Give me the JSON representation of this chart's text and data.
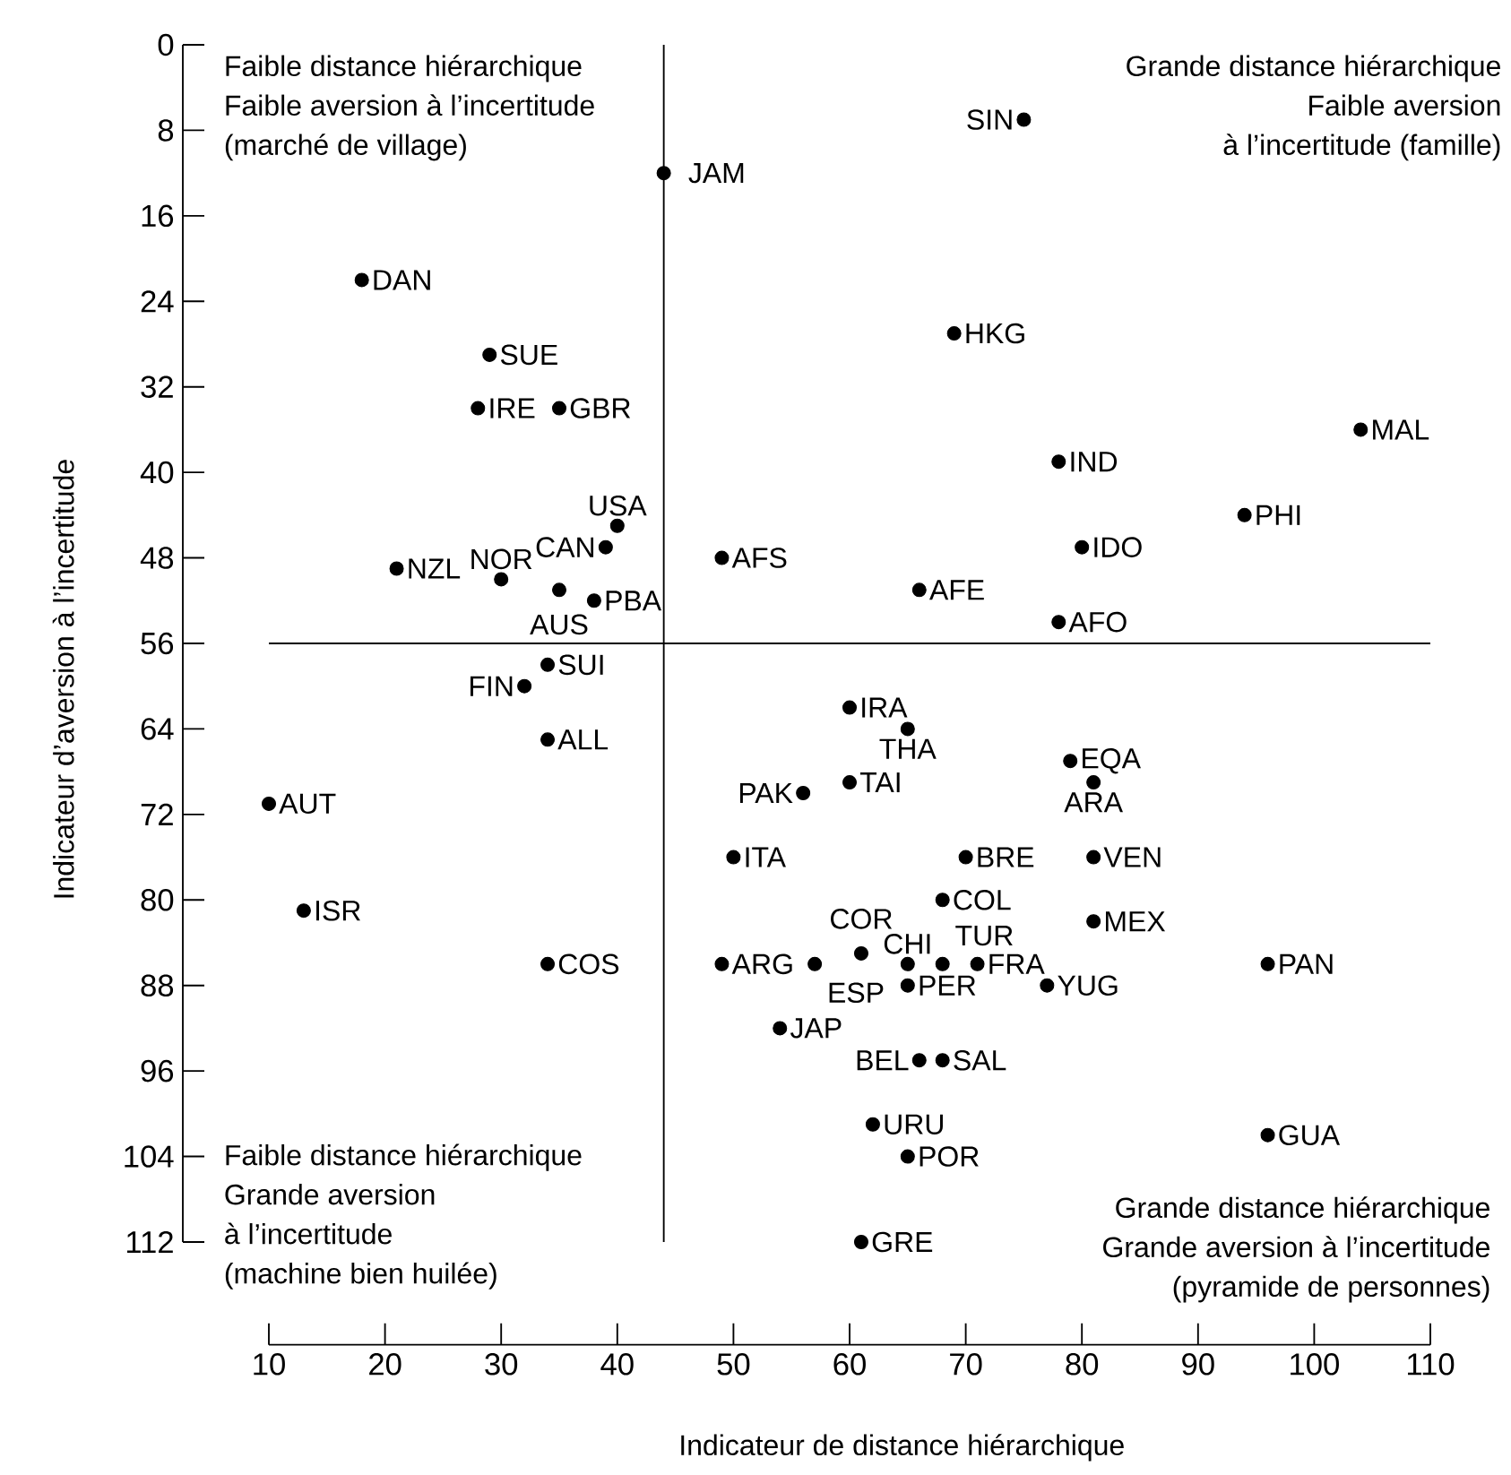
{
  "chart_data": {
    "type": "scatter",
    "xlabel": "Indicateur de distance hiérarchique",
    "ylabel": "Indicateur d’aversion à l’incertitude",
    "x": [
      44,
      18,
      29,
      28,
      35,
      21,
      30,
      35,
      39,
      40,
      49,
      38,
      34,
      32,
      34,
      10,
      13,
      34,
      50,
      49,
      57,
      54,
      56,
      75,
      69,
      104,
      78,
      94,
      80,
      66,
      78,
      60,
      65,
      60,
      79,
      81,
      70,
      81,
      68,
      81,
      65,
      65,
      68,
      71,
      61,
      77,
      96,
      66,
      68,
      62,
      65,
      96,
      61
    ],
    "values": [
      12,
      22,
      29,
      34,
      34,
      49,
      50,
      51,
      47,
      45,
      48,
      52,
      58,
      60,
      65,
      71,
      81,
      86,
      76,
      86,
      86,
      92,
      70,
      7,
      27,
      36,
      39,
      44,
      47,
      51,
      54,
      62,
      64,
      69,
      67,
      69,
      76,
      76,
      80,
      82,
      86,
      88,
      86,
      86,
      85,
      88,
      86,
      95,
      95,
      101,
      104,
      102,
      112
    ],
    "color": "#000000",
    "marker": "circle",
    "xlim": [
      10,
      110
    ],
    "ylim": [
      112,
      0
    ],
    "xticks": [
      10,
      20,
      30,
      40,
      50,
      60,
      70,
      80,
      90,
      100,
      110
    ],
    "yticks": [
      0,
      8,
      16,
      24,
      32,
      40,
      48,
      56,
      64,
      72,
      80,
      88,
      96,
      104,
      112
    ],
    "ref_lines": [
      {
        "axis": "x",
        "value": 44
      },
      {
        "axis": "y",
        "value": 56
      }
    ],
    "annotations": [
      "Faible distance hiérarchique",
      "Faible aversion à l’incertitude",
      "(marché de village)",
      "Grande distance hiérarchique",
      "Faible aversion",
      "à l’incertitude (famille)",
      "Faible distance hiérarchique",
      "Grande aversion",
      "à l’incertitude",
      "(machine bien huilée)",
      "Grande distance hiérarchique",
      "Grande aversion à l’incertitude",
      "(pyramide de personnes)",
      {
        "text": "JAM",
        "x": 44,
        "y": 12
      },
      {
        "text": "DAN",
        "x": 18,
        "y": 22
      },
      {
        "text": "SUE",
        "x": 29,
        "y": 29
      },
      {
        "text": "IRE",
        "x": 28,
        "y": 34
      },
      {
        "text": "GBR",
        "x": 35,
        "y": 34
      },
      {
        "text": "NZL",
        "x": 21,
        "y": 49
      },
      {
        "text": "NOR",
        "x": 30,
        "y": 50
      },
      {
        "text": "AUS",
        "x": 35,
        "y": 51
      },
      {
        "text": "CAN",
        "x": 39,
        "y": 47
      },
      {
        "text": "USA",
        "x": 40,
        "y": 45
      },
      {
        "text": "AFS",
        "x": 49,
        "y": 48
      },
      {
        "text": "PBA",
        "x": 38,
        "y": 52
      },
      {
        "text": "SUI",
        "x": 34,
        "y": 58
      },
      {
        "text": "FIN",
        "x": 32,
        "y": 60
      },
      {
        "text": "ALL",
        "x": 34,
        "y": 65
      },
      {
        "text": "AUT",
        "x": 10,
        "y": 71
      },
      {
        "text": "ISR",
        "x": 13,
        "y": 81
      },
      {
        "text": "COS",
        "x": 34,
        "y": 86
      },
      {
        "text": "ITA",
        "x": 50,
        "y": 76
      },
      {
        "text": "ARG",
        "x": 49,
        "y": 86
      },
      {
        "text": "ESP",
        "x": 57,
        "y": 86
      },
      {
        "text": "JAP",
        "x": 54,
        "y": 92
      },
      {
        "text": "PAK",
        "x": 56,
        "y": 70
      },
      {
        "text": "SIN",
        "x": 75,
        "y": 7
      },
      {
        "text": "HKG",
        "x": 69,
        "y": 27
      },
      {
        "text": "MAL",
        "x": 104,
        "y": 36
      },
      {
        "text": "IND",
        "x": 78,
        "y": 39
      },
      {
        "text": "PHI",
        "x": 94,
        "y": 44
      },
      {
        "text": "IDO",
        "x": 80,
        "y": 47
      },
      {
        "text": "AFE",
        "x": 66,
        "y": 51
      },
      {
        "text": "AFO",
        "x": 78,
        "y": 54
      },
      {
        "text": "IRA",
        "x": 60,
        "y": 62
      },
      {
        "text": "THA",
        "x": 65,
        "y": 64
      },
      {
        "text": "TAI",
        "x": 60,
        "y": 69
      },
      {
        "text": "EQA",
        "x": 79,
        "y": 67
      },
      {
        "text": "ARA",
        "x": 81,
        "y": 69
      },
      {
        "text": "BRE",
        "x": 70,
        "y": 76
      },
      {
        "text": "VEN",
        "x": 81,
        "y": 76
      },
      {
        "text": "COL",
        "x": 68,
        "y": 80
      },
      {
        "text": "MEX",
        "x": 81,
        "y": 82
      },
      {
        "text": "CHI",
        "x": 65,
        "y": 86
      },
      {
        "text": "PER",
        "x": 65,
        "y": 88
      },
      {
        "text": "TUR",
        "x": 68,
        "y": 86
      },
      {
        "text": "FRA",
        "x": 71,
        "y": 86
      },
      {
        "text": "COR",
        "x": 61,
        "y": 85
      },
      {
        "text": "YUG",
        "x": 77,
        "y": 88
      },
      {
        "text": "PAN",
        "x": 96,
        "y": 86
      },
      {
        "text": "BEL",
        "x": 66,
        "y": 95
      },
      {
        "text": "SAL",
        "x": 68,
        "y": 95
      },
      {
        "text": "URU",
        "x": 62,
        "y": 101
      },
      {
        "text": "POR",
        "x": 65,
        "y": 104
      },
      {
        "text": "GUA",
        "x": 96,
        "y": 102
      },
      {
        "text": "GRE",
        "x": 61,
        "y": 112
      }
    ]
  }
}
